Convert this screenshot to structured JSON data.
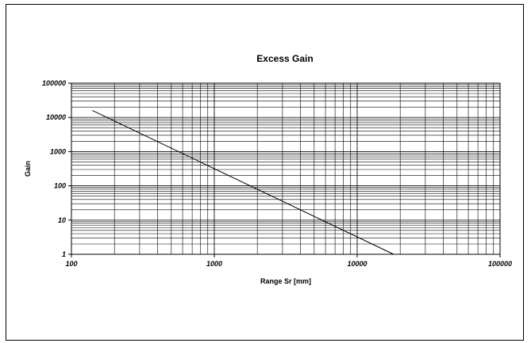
{
  "chart_data": {
    "type": "line",
    "title": "Excess Gain",
    "xlabel": "Range Sr [mm]",
    "ylabel": "Gain",
    "x_scale": "log",
    "y_scale": "log",
    "xlim": [
      100,
      100000
    ],
    "ylim": [
      1,
      100000
    ],
    "x_ticks": [
      100,
      1000,
      10000,
      100000
    ],
    "x_tick_labels": [
      "100",
      "1000",
      "10000",
      "100000"
    ],
    "y_ticks": [
      1,
      10,
      100,
      1000,
      10000,
      100000
    ],
    "y_tick_labels": [
      "1",
      "10",
      "100",
      "1000",
      "10000",
      "100000"
    ],
    "grid": true,
    "legend": "none",
    "series": [
      {
        "x": [
          140,
          18000
        ],
        "y": [
          16000,
          1
        ],
        "color": "#000000"
      }
    ]
  }
}
